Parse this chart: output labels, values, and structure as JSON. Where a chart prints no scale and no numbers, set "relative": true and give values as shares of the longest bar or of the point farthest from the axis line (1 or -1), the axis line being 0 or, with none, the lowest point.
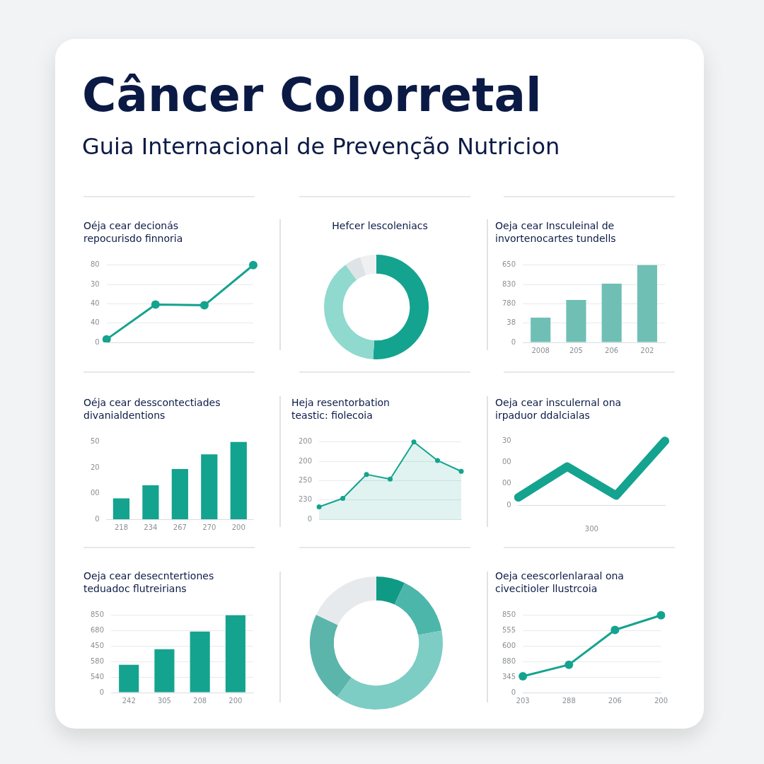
{
  "chart_data": [
    {
      "type": "other",
      "title": "Câncer Colorretal",
      "subtitle": "Guia Internacional de Prevenção Nutricion"
    },
    {
      "type": "line",
      "relative": true,
      "title": "Oéja cear decionás\nrepocurisdo finnoria",
      "categories": [
        null,
        null,
        null,
        null
      ],
      "series": [
        {
          "color": "#14a38f",
          "values": [
            0.04,
            0.49,
            0.48,
            1
          ]
        }
      ],
      "annotations": [
        "0",
        "40",
        "40",
        "30",
        "80"
      ],
      "grid": "y",
      "marker": "circle"
    },
    {
      "type": "donut",
      "title": "Hefcer lescoleniacs",
      "categories": [
        null,
        null,
        null,
        null
      ],
      "values": [
        51,
        39,
        5,
        5
      ],
      "colors": [
        "#14a38f",
        "#8fd9cf",
        "#dde3e6",
        "#eef0f2"
      ]
    },
    {
      "type": "bar",
      "relative": true,
      "title": "Oeja cear Insculeinal de\ninvortenocartes tundells",
      "categories": [
        "2008",
        "205",
        "206",
        "202"
      ],
      "series": [
        {
          "color": "#6fbfb5",
          "values": [
            0.32,
            0.55,
            0.76,
            1
          ]
        }
      ],
      "annotations": [
        "0",
        "38",
        "780",
        "830",
        "650"
      ],
      "grid": "y"
    },
    {
      "type": "bar",
      "relative": true,
      "title": "Oéja cear desscontectiades\ndivanialdentions",
      "categories": [
        "218",
        "234",
        "267",
        "270",
        "200"
      ],
      "series": [
        {
          "color": "#14a38f",
          "values": [
            0.27,
            0.44,
            0.65,
            0.84,
            1
          ]
        }
      ],
      "annotations": [
        "0",
        "00",
        "20",
        "50"
      ]
    },
    {
      "type": "area",
      "relative": true,
      "title": "Heja resentorbation\nteastic: fiolecoia",
      "categories": [
        null,
        null,
        null,
        null,
        null,
        null,
        null
      ],
      "series": [
        {
          "color": "#14a38f",
          "values": [
            0.16,
            0.27,
            0.58,
            0.52,
            1,
            0.76,
            0.62
          ]
        }
      ],
      "annotations": [
        "0",
        "230",
        "250",
        "200",
        "200"
      ],
      "grid": "y",
      "marker": "circle"
    },
    {
      "type": "line",
      "relative": true,
      "title": "Oeja cear insculernal ona\nirpaduor ddalcialas",
      "xlabel": "300",
      "categories": [
        null,
        null,
        null,
        null
      ],
      "series": [
        {
          "color": "#14a38f",
          "values": [
            0.12,
            0.6,
            0.15,
            1
          ]
        }
      ],
      "annotations": [
        "0",
        "00",
        "00",
        "30"
      ],
      "marker": "none"
    },
    {
      "type": "bar",
      "relative": true,
      "title": "Oeja cear desecntertiones\nteduadoc flutreirians",
      "categories": [
        "242",
        "305",
        "208",
        "200"
      ],
      "series": [
        {
          "color": "#14a38f",
          "values": [
            0.36,
            0.56,
            0.79,
            1
          ]
        }
      ],
      "annotations": [
        "0",
        "540",
        "580",
        "450",
        "680",
        "850"
      ],
      "grid": "y"
    },
    {
      "type": "donut",
      "categories": [
        null,
        null,
        null,
        null,
        null
      ],
      "values": [
        7,
        15,
        38,
        22,
        18
      ],
      "colors": [
        "#0f9a85",
        "#4db6aa",
        "#7dcdc4",
        "#5bb5ab",
        "#e6eaec"
      ]
    },
    {
      "type": "line",
      "relative": true,
      "title": "Oeja ceescorlenlaraal ona\ncivecitioler llustrcoia",
      "categories": [
        "203",
        "288",
        "206",
        "200"
      ],
      "series": [
        {
          "color": "#14a38f",
          "values": [
            0.21,
            0.36,
            0.81,
            1
          ]
        }
      ],
      "annotations": [
        "0",
        "345",
        "880",
        "600",
        "555",
        "850"
      ],
      "grid": "y",
      "marker": "circle"
    }
  ]
}
